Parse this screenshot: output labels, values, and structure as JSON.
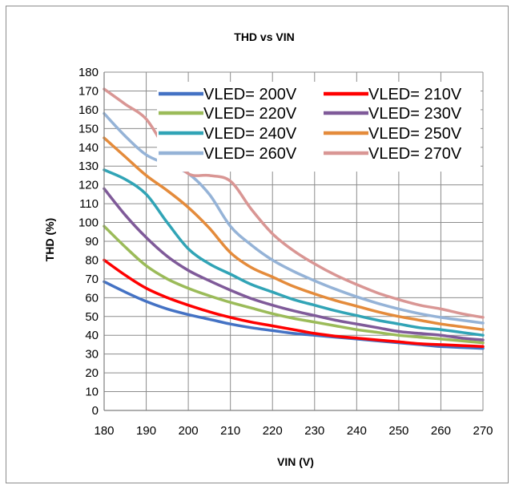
{
  "chart_data": {
    "type": "line",
    "title": "THD vs VIN",
    "xlabel": "VIN (V)",
    "ylabel": "THD (%)",
    "xlim": [
      180,
      270
    ],
    "ylim": [
      0,
      180
    ],
    "xticks": [
      180,
      190,
      200,
      210,
      220,
      230,
      240,
      250,
      260,
      270
    ],
    "yticks": [
      0,
      10,
      20,
      30,
      40,
      50,
      60,
      70,
      80,
      90,
      100,
      110,
      120,
      130,
      140,
      150,
      160,
      170,
      180
    ],
    "grid": true,
    "legend_position": "top-right",
    "series": [
      {
        "name": "VLED= 200V",
        "color": "#4472c4",
        "x": [
          180,
          185,
          190,
          195,
          200,
          205,
          210,
          215,
          220,
          225,
          230,
          235,
          240,
          245,
          250,
          255,
          260,
          265,
          270
        ],
        "y": [
          68.5,
          63,
          58,
          54,
          51,
          48.5,
          46,
          44,
          42.5,
          41,
          40,
          39,
          38,
          37,
          36,
          35,
          34,
          33.5,
          33
        ]
      },
      {
        "name": "VLED= 210V",
        "color": "#ff0000",
        "x": [
          180,
          185,
          190,
          195,
          200,
          205,
          210,
          215,
          220,
          225,
          230,
          235,
          240,
          245,
          250,
          255,
          260,
          265,
          270
        ],
        "y": [
          80,
          72,
          65,
          60,
          56,
          52.5,
          49.5,
          47,
          45,
          43,
          41,
          39.5,
          38.5,
          37.5,
          36.5,
          35.5,
          35,
          34.5,
          34
        ]
      },
      {
        "name": "VLED= 220V",
        "color": "#9bbb59",
        "x": [
          180,
          185,
          190,
          195,
          200,
          205,
          210,
          215,
          220,
          225,
          230,
          235,
          240,
          245,
          250,
          255,
          260,
          265,
          270
        ],
        "y": [
          98,
          87,
          77,
          70,
          65,
          61,
          57.5,
          54.5,
          51.5,
          49,
          47,
          45,
          43,
          41.5,
          40,
          39,
          38,
          37,
          36
        ]
      },
      {
        "name": "VLED= 230V",
        "color": "#7f5a99",
        "x": [
          180,
          185,
          190,
          195,
          200,
          205,
          210,
          215,
          220,
          225,
          230,
          235,
          240,
          245,
          250,
          255,
          260,
          265,
          270
        ],
        "y": [
          118,
          104,
          92,
          82,
          74.5,
          69,
          64,
          59.5,
          56,
          53,
          50.5,
          48,
          46,
          44,
          42,
          41,
          40,
          38.5,
          37.5
        ]
      },
      {
        "name": "VLED= 240V",
        "color": "#31a4b6",
        "x": [
          180,
          185,
          190,
          195,
          200,
          205,
          210,
          215,
          220,
          225,
          230,
          235,
          240,
          245,
          250,
          255,
          260,
          265,
          270
        ],
        "y": [
          128,
          123,
          115,
          100,
          86,
          78,
          72.5,
          67,
          63,
          59,
          56,
          53,
          50.5,
          48,
          46,
          44,
          43,
          41.5,
          40
        ]
      },
      {
        "name": "VLED= 250V",
        "color": "#e48b3b",
        "x": [
          180,
          185,
          190,
          195,
          200,
          205,
          210,
          215,
          220,
          225,
          230,
          235,
          240,
          245,
          250,
          255,
          260,
          265,
          270
        ],
        "y": [
          145,
          135,
          125,
          117,
          108,
          97,
          84,
          76,
          71,
          66,
          62,
          58.5,
          55.5,
          52.5,
          50,
          48,
          46,
          44.5,
          43
        ]
      },
      {
        "name": "VLED= 260V",
        "color": "#95b3d7",
        "x": [
          180,
          185,
          190,
          195,
          200,
          205,
          210,
          215,
          220,
          225,
          230,
          235,
          240,
          245,
          250,
          255,
          260,
          265,
          270
        ],
        "y": [
          158,
          146,
          136,
          131,
          126,
          115,
          98,
          88,
          80,
          74,
          69,
          64.5,
          60.5,
          57,
          54,
          51.5,
          49.5,
          48,
          46.5
        ]
      },
      {
        "name": "VLED= 270V",
        "color": "#d99694",
        "x": [
          180,
          185,
          190,
          195,
          200,
          205,
          210,
          215,
          220,
          225,
          230,
          235,
          240,
          245,
          250,
          255,
          260,
          265,
          270
        ],
        "y": [
          171,
          163,
          155,
          138,
          126,
          125,
          122,
          107,
          94,
          85,
          78,
          72,
          67,
          62.5,
          59,
          56,
          54,
          51.5,
          49.5
        ]
      }
    ]
  }
}
